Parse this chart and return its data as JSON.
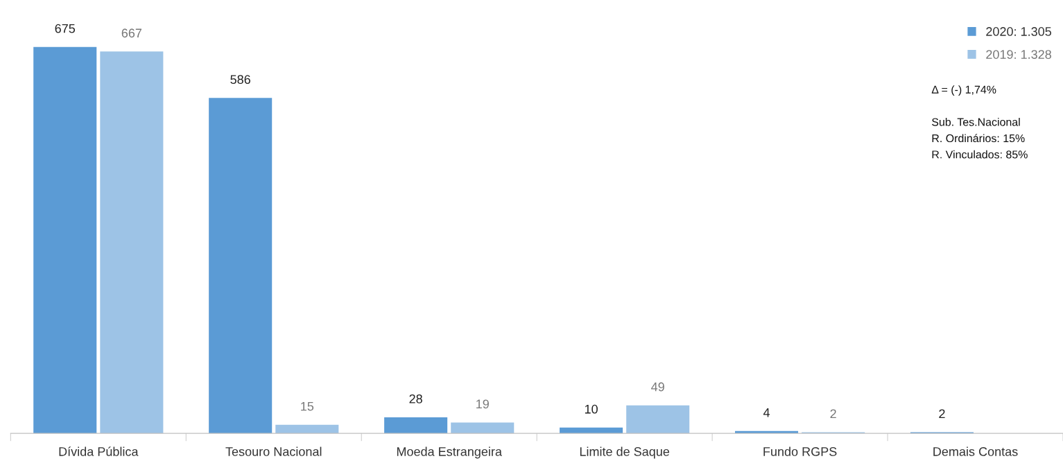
{
  "chart_data": {
    "type": "bar",
    "categories": [
      "Dívida Pública",
      "Tesouro Nacional",
      "Moeda Estrangeira",
      "Limite de Saque",
      "Fundo RGPS",
      "Demais Contas"
    ],
    "series": [
      {
        "name": "2020: 1.305",
        "color": "#5b9bd5",
        "values": [
          675,
          586,
          28,
          10,
          4,
          2
        ]
      },
      {
        "name": "2019: 1.328",
        "color": "#9dc3e6",
        "values": [
          667,
          15,
          19,
          49,
          2,
          null
        ]
      }
    ],
    "data_labels": true,
    "legend": "top right",
    "grid": false,
    "annotations": [
      "Δ = (-) 1,74%",
      "Sub. Tes.Nacional",
      "R. Ordinários: 15%",
      "R. Vinculados: 85%"
    ]
  }
}
